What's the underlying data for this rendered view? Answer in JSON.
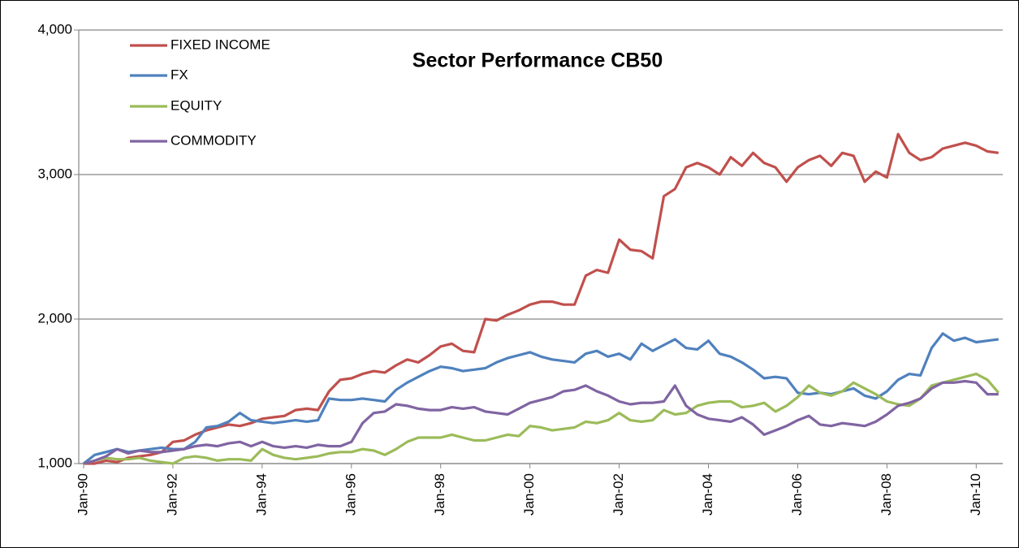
{
  "chart_data": {
    "type": "line",
    "title": "Sector Performance CB50",
    "categories": [
      "Jan-90",
      null,
      null,
      null,
      null,
      null,
      null,
      null,
      "Jan-92",
      null,
      null,
      null,
      null,
      null,
      null,
      null,
      "Jan-94",
      null,
      null,
      null,
      null,
      null,
      null,
      null,
      "Jan-96",
      null,
      null,
      null,
      null,
      null,
      null,
      null,
      "Jan-98",
      null,
      null,
      null,
      null,
      null,
      null,
      null,
      "Jan-00",
      null,
      null,
      null,
      null,
      null,
      null,
      null,
      "Jan-02",
      null,
      null,
      null,
      null,
      null,
      null,
      null,
      "Jan-04",
      null,
      null,
      null,
      null,
      null,
      null,
      null,
      "Jan-06",
      null,
      null,
      null,
      null,
      null,
      null,
      null,
      "Jan-08",
      null,
      null,
      null,
      null,
      null,
      null,
      null,
      "Jan-10",
      null,
      null
    ],
    "series": [
      {
        "name": "FIXED INCOME",
        "color": "#c0504d",
        "values": [
          1000,
          1000,
          1020,
          1010,
          1040,
          1050,
          1060,
          1080,
          1150,
          1160,
          1200,
          1230,
          1250,
          1270,
          1260,
          1280,
          1310,
          1320,
          1330,
          1370,
          1380,
          1370,
          1500,
          1580,
          1590,
          1620,
          1640,
          1630,
          1680,
          1720,
          1700,
          1750,
          1810,
          1830,
          1780,
          1770,
          2000,
          1990,
          2030,
          2060,
          2100,
          2120,
          2120,
          2100,
          2100,
          2300,
          2340,
          2320,
          2550,
          2480,
          2470,
          2420,
          2850,
          2900,
          3050,
          3080,
          3050,
          3000,
          3120,
          3060,
          3150,
          3080,
          3050,
          2950,
          3050,
          3100,
          3130,
          3060,
          3150,
          3130,
          2950,
          3020,
          2980,
          3280,
          3150,
          3100,
          3120,
          3180,
          3200,
          3220,
          3200,
          3160,
          3150
        ]
      },
      {
        "name": "FX",
        "color": "#4f81bd",
        "values": [
          1000,
          1060,
          1080,
          1100,
          1080,
          1090,
          1100,
          1110,
          1100,
          1100,
          1150,
          1250,
          1260,
          1290,
          1350,
          1300,
          1290,
          1280,
          1290,
          1300,
          1290,
          1300,
          1450,
          1440,
          1440,
          1450,
          1440,
          1430,
          1510,
          1560,
          1600,
          1640,
          1670,
          1660,
          1640,
          1650,
          1660,
          1700,
          1730,
          1750,
          1770,
          1740,
          1720,
          1710,
          1700,
          1760,
          1780,
          1740,
          1760,
          1720,
          1830,
          1780,
          1820,
          1860,
          1800,
          1790,
          1850,
          1760,
          1740,
          1700,
          1650,
          1590,
          1600,
          1590,
          1490,
          1480,
          1490,
          1480,
          1500,
          1520,
          1470,
          1450,
          1500,
          1580,
          1620,
          1610,
          1800,
          1900,
          1850,
          1870,
          1840,
          1850,
          1860
        ]
      },
      {
        "name": "EQUITY",
        "color": "#9bbb59",
        "values": [
          1000,
          1020,
          1040,
          1030,
          1030,
          1040,
          1020,
          1010,
          1000,
          1040,
          1050,
          1040,
          1020,
          1030,
          1030,
          1020,
          1100,
          1060,
          1040,
          1030,
          1040,
          1050,
          1070,
          1080,
          1080,
          1100,
          1090,
          1060,
          1100,
          1150,
          1180,
          1180,
          1180,
          1200,
          1180,
          1160,
          1160,
          1180,
          1200,
          1190,
          1260,
          1250,
          1230,
          1240,
          1250,
          1290,
          1280,
          1300,
          1350,
          1300,
          1290,
          1300,
          1370,
          1340,
          1350,
          1400,
          1420,
          1430,
          1430,
          1390,
          1400,
          1420,
          1360,
          1400,
          1460,
          1540,
          1490,
          1470,
          1500,
          1560,
          1520,
          1480,
          1430,
          1410,
          1400,
          1450,
          1540,
          1560,
          1580,
          1600,
          1620,
          1580,
          1490
        ]
      },
      {
        "name": "COMMODITY",
        "color": "#8064a2",
        "values": [
          1000,
          1020,
          1050,
          1100,
          1070,
          1090,
          1080,
          1080,
          1090,
          1100,
          1120,
          1130,
          1120,
          1140,
          1150,
          1120,
          1150,
          1120,
          1110,
          1120,
          1110,
          1130,
          1120,
          1120,
          1150,
          1280,
          1350,
          1360,
          1410,
          1400,
          1380,
          1370,
          1370,
          1390,
          1380,
          1390,
          1360,
          1350,
          1340,
          1380,
          1420,
          1440,
          1460,
          1500,
          1510,
          1540,
          1500,
          1470,
          1430,
          1410,
          1420,
          1420,
          1430,
          1540,
          1400,
          1340,
          1310,
          1300,
          1290,
          1320,
          1270,
          1200,
          1230,
          1260,
          1300,
          1330,
          1270,
          1260,
          1280,
          1270,
          1260,
          1290,
          1340,
          1400,
          1420,
          1450,
          1520,
          1560,
          1560,
          1570,
          1560,
          1480,
          1480
        ]
      }
    ],
    "ylim": [
      1000,
      4000
    ],
    "yticks": [
      {
        "value": 1000,
        "label": "1,000"
      },
      {
        "value": 2000,
        "label": "2,000"
      },
      {
        "value": 3000,
        "label": "3,000"
      },
      {
        "value": 4000,
        "label": "4,000"
      }
    ],
    "grid": true,
    "legend": "top-left"
  }
}
